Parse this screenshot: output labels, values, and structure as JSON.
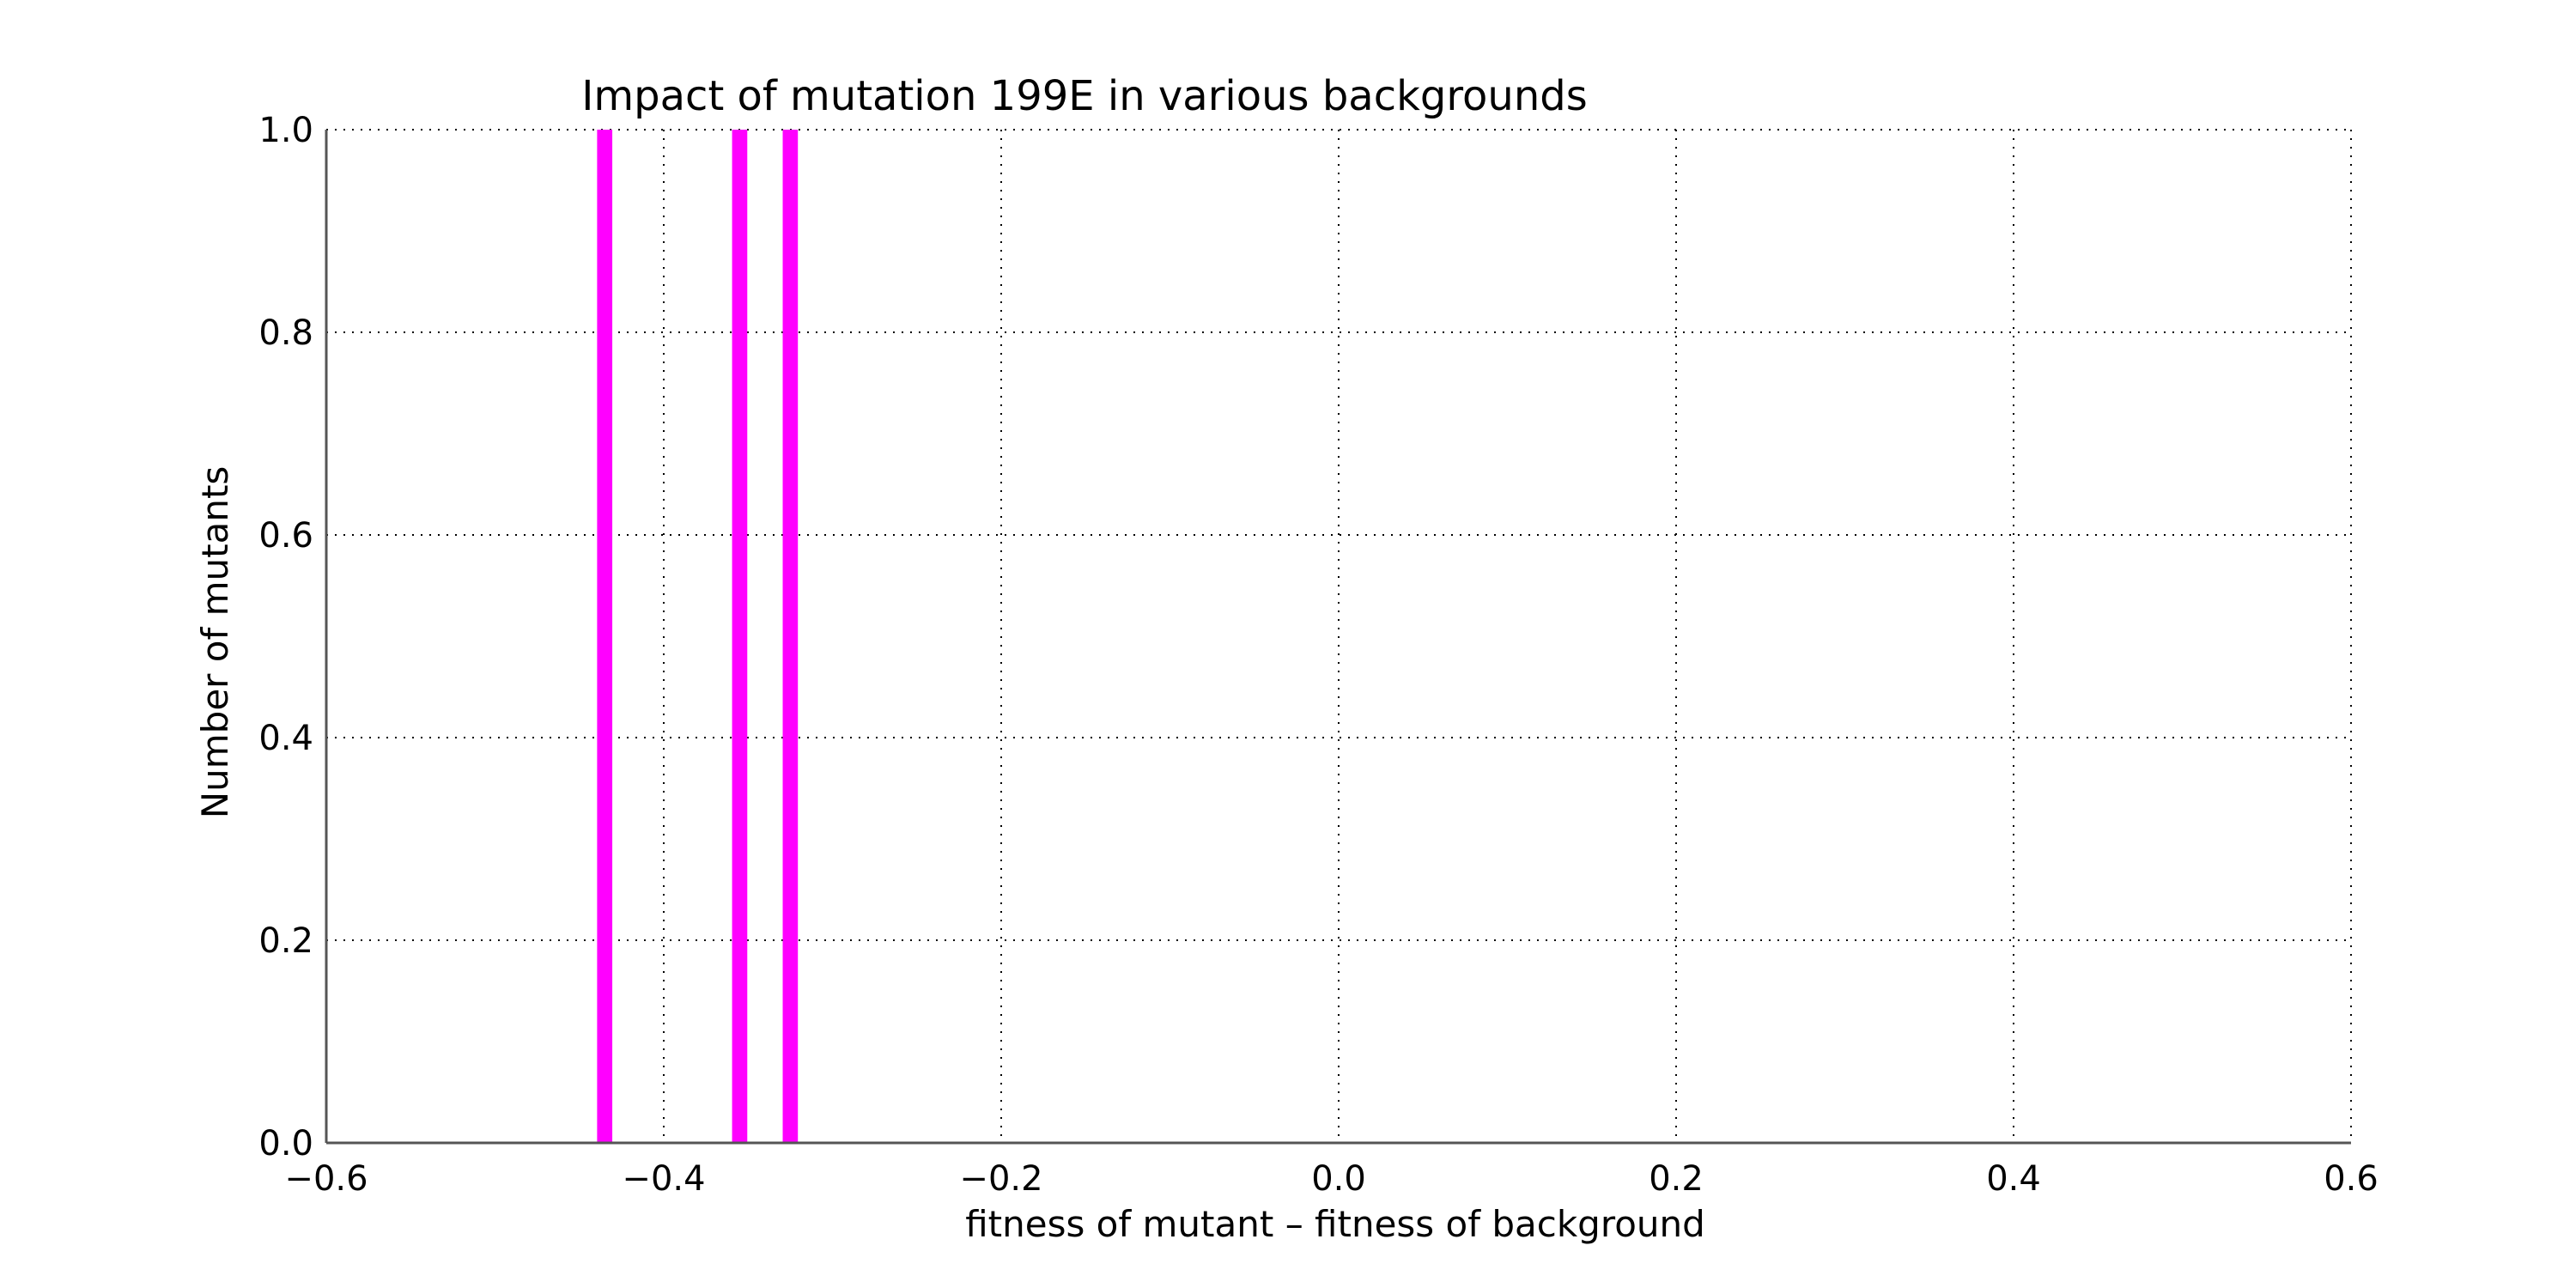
{
  "chart_data": {
    "type": "bar",
    "title": "Impact of mutation 199E in various backgrounds",
    "xlabel": "fitness of mutant  –  fitness of background",
    "ylabel": "Number of mutants",
    "xlim": [
      -0.6,
      0.6
    ],
    "ylim": [
      0.0,
      1.0
    ],
    "xticks": [
      "−0.6",
      "−0.4",
      "−0.2",
      "0.0",
      "0.2",
      "0.4",
      "0.6"
    ],
    "yticks": [
      "0.0",
      "0.2",
      "0.4",
      "0.6",
      "0.8",
      "1.0"
    ],
    "grid": true,
    "bar_color": "#ff00ff",
    "bars": [
      {
        "x": -0.435,
        "value": 1
      },
      {
        "x": -0.355,
        "value": 1
      },
      {
        "x": -0.325,
        "value": 1
      }
    ]
  }
}
